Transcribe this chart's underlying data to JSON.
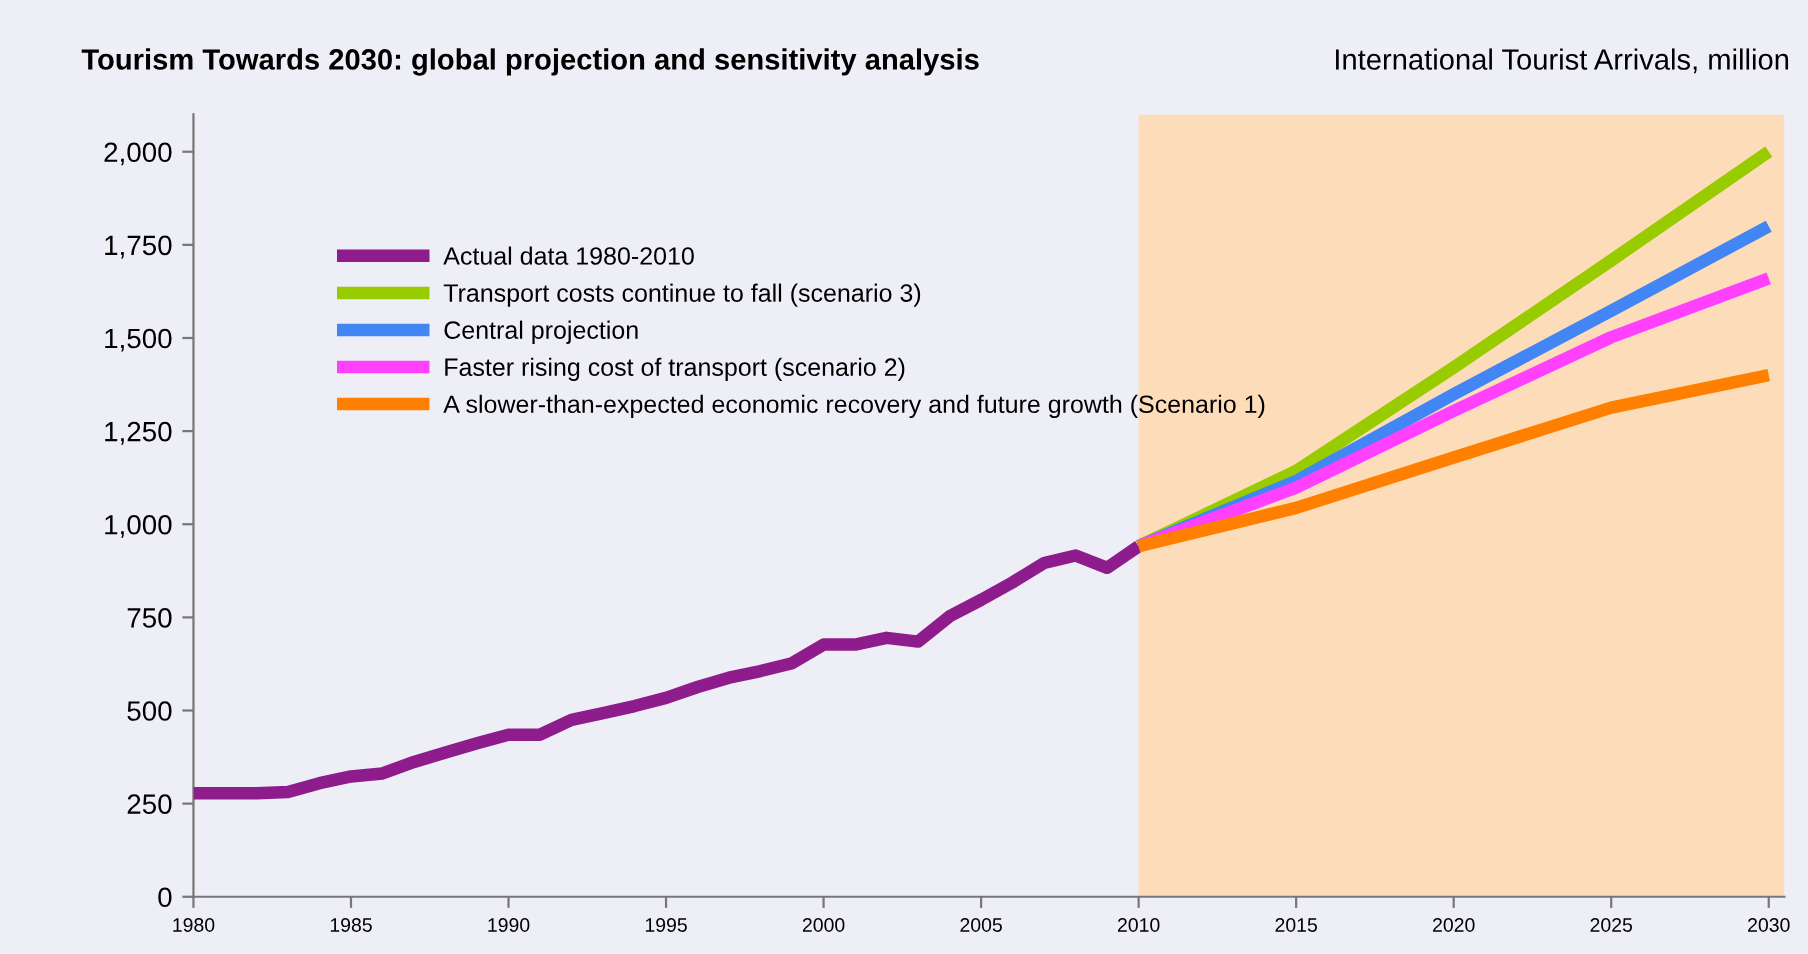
{
  "chart_data": {
    "type": "line",
    "title": "Tourism Towards 2030: global projection and sensitivity analysis",
    "subtitle": "International Tourist Arrivals, million",
    "xlim": [
      1980,
      2030.5
    ],
    "xticks": [
      1980,
      1985,
      1990,
      1995,
      2000,
      2005,
      2010,
      2015,
      2020,
      2025,
      2030
    ],
    "ylim": [
      0,
      2100
    ],
    "yticks": [
      0,
      250,
      500,
      750,
      {
        "value": 1000,
        "label": "1,000"
      },
      {
        "value": 1250,
        "label": "1,250"
      },
      {
        "value": 1500,
        "label": "1,500"
      },
      {
        "value": 1750,
        "label": "1,750"
      },
      {
        "value": 2000,
        "label": "2,000"
      }
    ],
    "grid": false,
    "legend": "top left",
    "marker": "none",
    "line_style": "solid",
    "bands": [
      {
        "axis": "x",
        "from": 2010,
        "to": 2030.5,
        "color": "#fddcb9"
      }
    ],
    "series": [
      {
        "name": "Actual data 1980-2010",
        "color": "#8e1c8c",
        "x": [
          1980,
          1981,
          1982,
          1983,
          1984,
          1985,
          1986,
          1987,
          1988,
          1989,
          1990,
          1991,
          1992,
          1993,
          1994,
          1995,
          1996,
          1997,
          1998,
          1999,
          2000,
          2001,
          2002,
          2003,
          2004,
          2005,
          2006,
          2007,
          2008,
          2009,
          2010
        ],
        "values": [
          278,
          278,
          278,
          281,
          305,
          323,
          331,
          362,
          387,
          412,
          435,
          435,
          475,
          493,
          512,
          534,
          563,
          588,
          606,
          627,
          677,
          677,
          695,
          685,
          753,
          797,
          844,
          896,
          916,
          883,
          941
        ]
      },
      {
        "name": "Transport costs continue to fall (scenario 3)",
        "color": "#99cc00",
        "x": [
          2010,
          2015,
          2020,
          2025,
          2030
        ],
        "values": [
          941,
          1143,
          1421,
          1708,
          2000
        ]
      },
      {
        "name": "Central projection",
        "color": "#4285f4",
        "x": [
          2010,
          2015,
          2020,
          2025,
          2030
        ],
        "values": [
          941,
          1116,
          1349,
          1573,
          1800
        ]
      },
      {
        "name": "Faster rising cost of transport (scenario 2)",
        "color": "#ff40ff",
        "x": [
          2010,
          2015,
          2020,
          2025,
          2030
        ],
        "values": [
          941,
          1098,
          1304,
          1502,
          1660
        ]
      },
      {
        "name": "A slower-than-expected economic recovery and future growth (Scenario 1)",
        "color": "#ff7f00",
        "x": [
          2010,
          2015,
          2020,
          2025,
          2030
        ],
        "values": [
          941,
          1044,
          1179,
          1313,
          1400
        ]
      }
    ]
  }
}
